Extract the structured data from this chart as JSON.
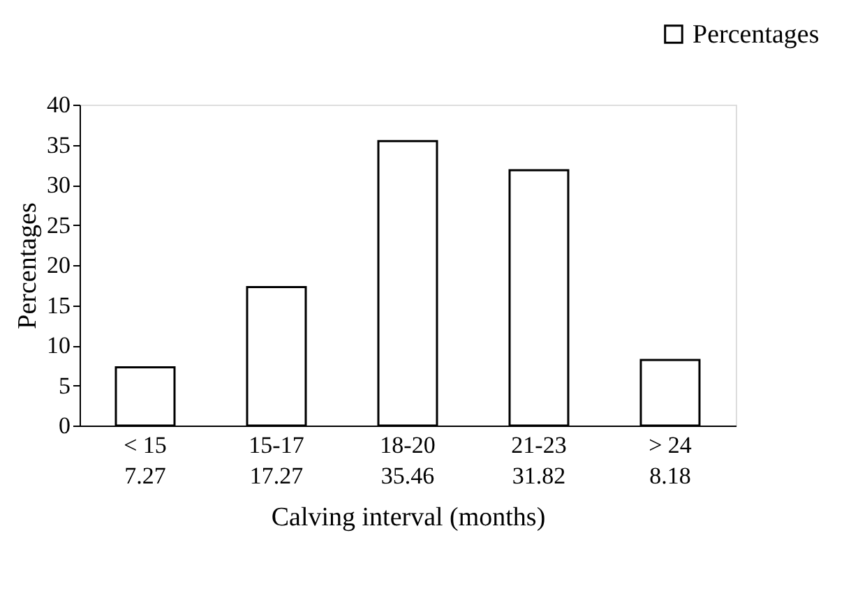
{
  "chart_data": {
    "type": "bar",
    "xlabel": "Calving interval (months)",
    "ylabel": "Percentages",
    "categories": [
      "< 15",
      "15-17",
      "18-20",
      "21-23",
      "> 24"
    ],
    "series": [
      {
        "name": "Percentages",
        "color": "#ffffff",
        "values": [
          7.27,
          17.27,
          35.46,
          31.82,
          8.18
        ]
      }
    ],
    "ylim": [
      0,
      40
    ],
    "yticks": [
      0,
      5,
      10,
      15,
      20,
      25,
      30,
      35,
      40
    ],
    "data_labels": true,
    "legend": "top right",
    "grid": false
  }
}
